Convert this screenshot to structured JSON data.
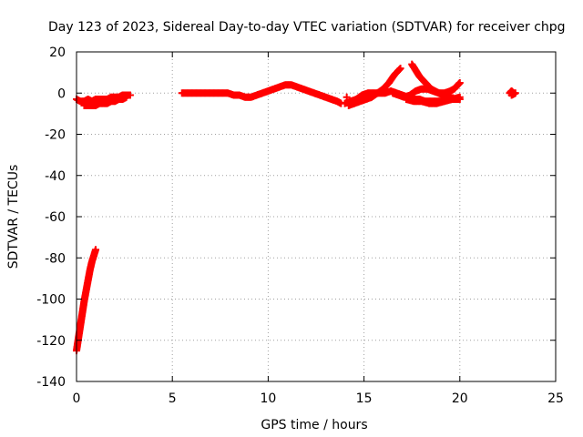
{
  "chart_data": {
    "type": "scatter",
    "title": "Day 123 of 2023, Sidereal Day-to-day VTEC variation (SDTVAR) for receiver chpg",
    "xlabel": "GPS time / hours",
    "ylabel": "SDTVAR / TECUs",
    "xlim": [
      0,
      25
    ],
    "ylim": [
      -140,
      20
    ],
    "xticks": [
      0,
      5,
      10,
      15,
      20,
      25
    ],
    "yticks": [
      -140,
      -120,
      -100,
      -80,
      -60,
      -40,
      -20,
      0,
      20
    ],
    "grid": true,
    "marker": "plus",
    "color": "#ff0000",
    "series": [
      {
        "values": [
          [
            0.0,
            -125
          ],
          [
            0.1,
            -119
          ],
          [
            0.2,
            -113
          ],
          [
            0.3,
            -107
          ],
          [
            0.4,
            -101
          ],
          [
            0.5,
            -96
          ],
          [
            0.6,
            -91
          ],
          [
            0.7,
            -86
          ],
          [
            0.8,
            -82
          ],
          [
            0.9,
            -79
          ],
          [
            1.0,
            -76
          ]
        ]
      },
      {
        "values": [
          [
            0.0,
            -3
          ],
          [
            0.2,
            -4
          ],
          [
            0.4,
            -4
          ],
          [
            0.6,
            -3
          ],
          [
            0.8,
            -4
          ],
          [
            1.0,
            -3
          ],
          [
            1.2,
            -3
          ],
          [
            1.4,
            -3
          ],
          [
            1.6,
            -3
          ],
          [
            1.8,
            -2
          ],
          [
            2.0,
            -2
          ],
          [
            2.2,
            -2
          ],
          [
            2.4,
            -1
          ],
          [
            2.6,
            -1
          ],
          [
            2.8,
            -1
          ]
        ]
      },
      {
        "values": [
          [
            0.4,
            -6
          ],
          [
            0.6,
            -6
          ],
          [
            0.8,
            -6
          ],
          [
            1.0,
            -6
          ],
          [
            1.2,
            -5
          ],
          [
            1.4,
            -5
          ],
          [
            1.6,
            -5
          ],
          [
            1.8,
            -4
          ],
          [
            2.0,
            -4
          ],
          [
            2.2,
            -3
          ],
          [
            2.4,
            -3
          ],
          [
            2.6,
            -2
          ]
        ]
      },
      {
        "values": [
          [
            5.5,
            0
          ],
          [
            5.8,
            0
          ],
          [
            6.1,
            0
          ],
          [
            6.4,
            0
          ],
          [
            6.7,
            0
          ],
          [
            7.0,
            0
          ],
          [
            7.3,
            0
          ],
          [
            7.6,
            0
          ],
          [
            7.9,
            0
          ],
          [
            8.2,
            -1
          ],
          [
            8.5,
            -1
          ],
          [
            8.8,
            -2
          ],
          [
            9.1,
            -2
          ],
          [
            9.4,
            -1
          ],
          [
            9.7,
            0
          ],
          [
            10.0,
            1
          ],
          [
            10.3,
            2
          ],
          [
            10.6,
            3
          ],
          [
            10.9,
            4
          ],
          [
            11.2,
            4
          ],
          [
            11.5,
            3
          ],
          [
            11.8,
            2
          ],
          [
            12.1,
            1
          ],
          [
            12.4,
            0
          ],
          [
            12.7,
            -1
          ],
          [
            13.0,
            -2
          ],
          [
            13.3,
            -3
          ],
          [
            13.6,
            -4
          ],
          [
            13.8,
            -5
          ]
        ]
      },
      {
        "values": [
          [
            14.0,
            -5
          ],
          [
            14.3,
            -4
          ],
          [
            14.6,
            -3
          ],
          [
            14.9,
            -1
          ],
          [
            15.2,
            0
          ],
          [
            15.5,
            0
          ],
          [
            15.8,
            0
          ],
          [
            16.1,
            0
          ],
          [
            16.4,
            1
          ],
          [
            16.7,
            0
          ],
          [
            17.0,
            -1
          ],
          [
            17.3,
            -2
          ],
          [
            17.6,
            -3
          ],
          [
            17.9,
            -3
          ],
          [
            18.2,
            -4
          ],
          [
            18.5,
            -4
          ],
          [
            18.8,
            -4
          ],
          [
            19.1,
            -4
          ],
          [
            19.4,
            -3
          ],
          [
            19.7,
            -3
          ],
          [
            20.0,
            -3
          ]
        ]
      },
      {
        "values": [
          [
            14.2,
            -6
          ],
          [
            14.5,
            -5
          ],
          [
            14.8,
            -4
          ],
          [
            15.1,
            -3
          ],
          [
            15.4,
            -2
          ],
          [
            15.7,
            0
          ],
          [
            16.0,
            2
          ],
          [
            16.3,
            5
          ],
          [
            16.6,
            9
          ],
          [
            16.9,
            12
          ]
        ]
      },
      {
        "values": [
          [
            17.5,
            14
          ],
          [
            17.7,
            11
          ],
          [
            17.9,
            8
          ],
          [
            18.1,
            6
          ],
          [
            18.3,
            4
          ],
          [
            18.5,
            2
          ],
          [
            18.7,
            1
          ],
          [
            18.9,
            0
          ],
          [
            19.1,
            -1
          ],
          [
            19.3,
            -1
          ],
          [
            19.5,
            -1
          ]
        ]
      },
      {
        "values": [
          [
            16.5,
            0
          ],
          [
            16.8,
            -1
          ],
          [
            17.1,
            -2
          ],
          [
            17.4,
            -1
          ],
          [
            17.7,
            1
          ],
          [
            18.0,
            2
          ],
          [
            18.3,
            2
          ],
          [
            18.6,
            1
          ],
          [
            18.9,
            0
          ],
          [
            19.2,
            0
          ],
          [
            19.5,
            1
          ],
          [
            19.7,
            2
          ],
          [
            19.9,
            4
          ],
          [
            20.0,
            5
          ]
        ]
      },
      {
        "values": [
          [
            17.2,
            -3
          ],
          [
            17.6,
            -4
          ],
          [
            18.0,
            -4
          ],
          [
            18.4,
            -5
          ],
          [
            18.8,
            -5
          ],
          [
            19.2,
            -4
          ],
          [
            19.6,
            -3
          ],
          [
            20.0,
            -2
          ]
        ]
      },
      {
        "values": [
          [
            22.6,
            0
          ],
          [
            22.7,
            1
          ],
          [
            22.8,
            0
          ],
          [
            22.9,
            0
          ],
          [
            22.7,
            -1
          ]
        ]
      },
      {
        "values": [
          [
            14.1,
            -2
          ]
        ]
      }
    ]
  }
}
